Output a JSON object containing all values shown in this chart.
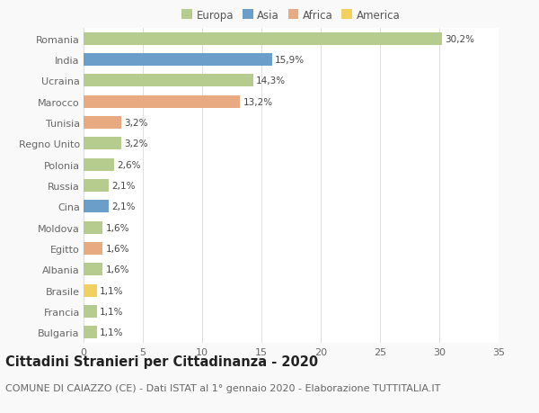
{
  "countries": [
    "Romania",
    "India",
    "Ucraina",
    "Marocco",
    "Tunisia",
    "Regno Unito",
    "Polonia",
    "Russia",
    "Cina",
    "Moldova",
    "Egitto",
    "Albania",
    "Brasile",
    "Francia",
    "Bulgaria"
  ],
  "values": [
    30.2,
    15.9,
    14.3,
    13.2,
    3.2,
    3.2,
    2.6,
    2.1,
    2.1,
    1.6,
    1.6,
    1.6,
    1.1,
    1.1,
    1.1
  ],
  "labels": [
    "30,2%",
    "15,9%",
    "14,3%",
    "13,2%",
    "3,2%",
    "3,2%",
    "2,6%",
    "2,1%",
    "2,1%",
    "1,6%",
    "1,6%",
    "1,6%",
    "1,1%",
    "1,1%",
    "1,1%"
  ],
  "continents": [
    "Europa",
    "Asia",
    "Europa",
    "Africa",
    "Africa",
    "Europa",
    "Europa",
    "Europa",
    "Asia",
    "Europa",
    "Africa",
    "Europa",
    "America",
    "Europa",
    "Europa"
  ],
  "continent_colors": {
    "Europa": "#b5cc8e",
    "Asia": "#6b9ec8",
    "Africa": "#e8aa80",
    "America": "#f2d060"
  },
  "legend_entries": [
    "Europa",
    "Asia",
    "Africa",
    "America"
  ],
  "legend_colors": [
    "#b5cc8e",
    "#6b9ec8",
    "#e8aa80",
    "#f2d060"
  ],
  "xlim": [
    0,
    35
  ],
  "xticks": [
    0,
    5,
    10,
    15,
    20,
    25,
    30,
    35
  ],
  "title": "Cittadini Stranieri per Cittadinanza - 2020",
  "subtitle": "COMUNE DI CAIAZZO (CE) - Dati ISTAT al 1° gennaio 2020 - Elaborazione TUTTITALIA.IT",
  "bg_color": "#f9f9f9",
  "plot_bg_color": "#ffffff",
  "bar_height": 0.6,
  "title_fontsize": 10.5,
  "subtitle_fontsize": 8,
  "label_fontsize": 7.5,
  "tick_fontsize": 8,
  "legend_fontsize": 8.5
}
